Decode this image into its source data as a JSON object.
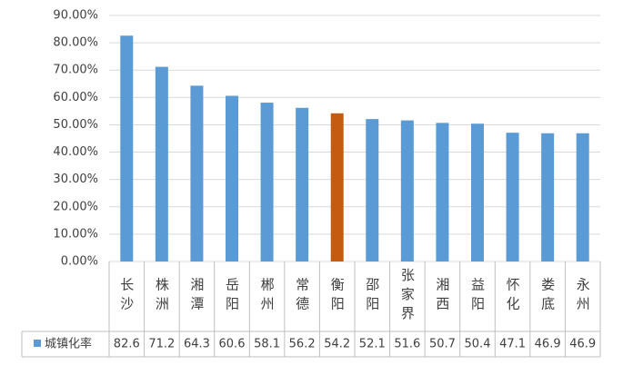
{
  "chart_data": {
    "type": "bar",
    "categories": [
      "长沙",
      "株洲",
      "湘潭",
      "岳阳",
      "郴州",
      "常德",
      "衡阳",
      "邵阳",
      "张家界",
      "湘西",
      "益阳",
      "怀化",
      "娄底",
      "永州"
    ],
    "series": [
      {
        "name": "城镇化率",
        "color": "#5b9bd5",
        "values": [
          82.6,
          71.2,
          64.3,
          60.6,
          58.1,
          56.2,
          54.2,
          52.1,
          51.6,
          50.7,
          50.4,
          47.1,
          46.9,
          46.9
        ],
        "point_colors": [
          "#5b9bd5",
          "#5b9bd5",
          "#5b9bd5",
          "#5b9bd5",
          "#5b9bd5",
          "#5b9bd5",
          "#c55a11",
          "#5b9bd5",
          "#5b9bd5",
          "#5b9bd5",
          "#5b9bd5",
          "#5b9bd5",
          "#5b9bd5",
          "#5b9bd5"
        ]
      }
    ],
    "ylim": [
      0,
      90
    ],
    "yticks": [
      {
        "value": 0,
        "label": "0.00%"
      },
      {
        "value": 10,
        "label": "10.00%"
      },
      {
        "value": 20,
        "label": "20.00%"
      },
      {
        "value": 30,
        "label": "30.00%"
      },
      {
        "value": 40,
        "label": "40.00%"
      },
      {
        "value": 50,
        "label": "50.00%"
      },
      {
        "value": 60,
        "label": "60.00%"
      },
      {
        "value": 70,
        "label": "70.00%"
      },
      {
        "value": 80,
        "label": "80.00%"
      },
      {
        "value": 90,
        "label": "90.00%"
      }
    ],
    "grid": true,
    "data_table": true
  }
}
